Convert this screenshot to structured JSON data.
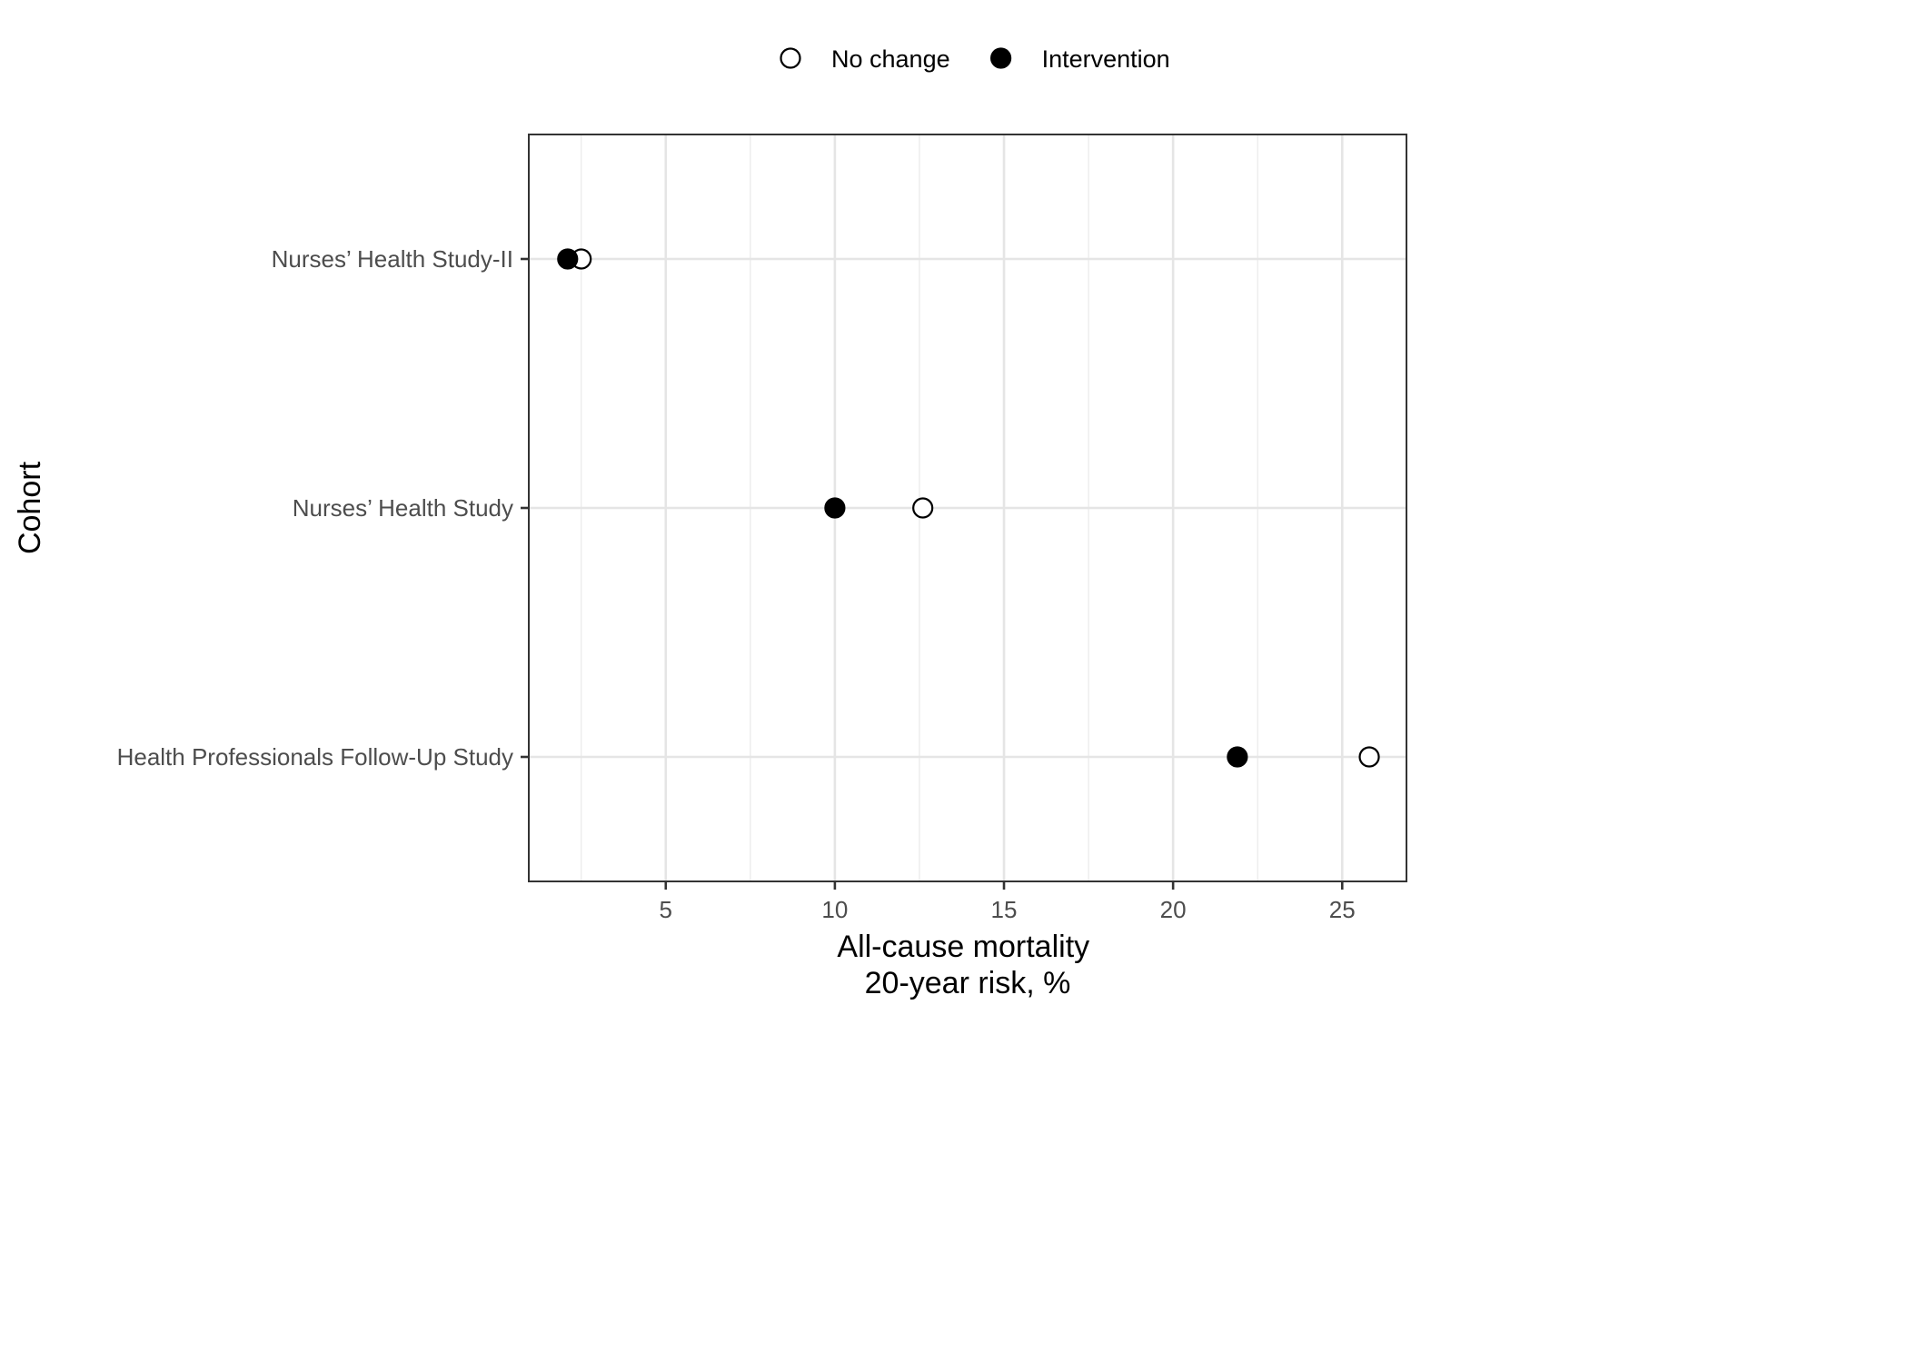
{
  "chart_data": {
    "type": "scatter",
    "orientation": "horizontal-dot-plot",
    "title": "",
    "xlabel_lines": [
      "All-cause mortality",
      "20-year risk, %"
    ],
    "ylabel": "Cohort",
    "xlim": [
      0.95,
      26.9
    ],
    "x_ticks": [
      5,
      10,
      15,
      20,
      25
    ],
    "x_minor_ticks": [
      2.5,
      7.5,
      12.5,
      17.5,
      22.5
    ],
    "categories": [
      "Nurses’ Health Study-II",
      "Nurses’ Health Study",
      "Health Professionals Follow-Up Study"
    ],
    "series": [
      {
        "name": "No change",
        "marker": "open-circle",
        "color": "#000000",
        "values": [
          2.5,
          12.6,
          25.8
        ]
      },
      {
        "name": "Intervention",
        "marker": "filled-circle",
        "color": "#000000",
        "values": [
          2.1,
          10.0,
          21.9
        ]
      }
    ],
    "grid": true,
    "legend_position": "top"
  }
}
